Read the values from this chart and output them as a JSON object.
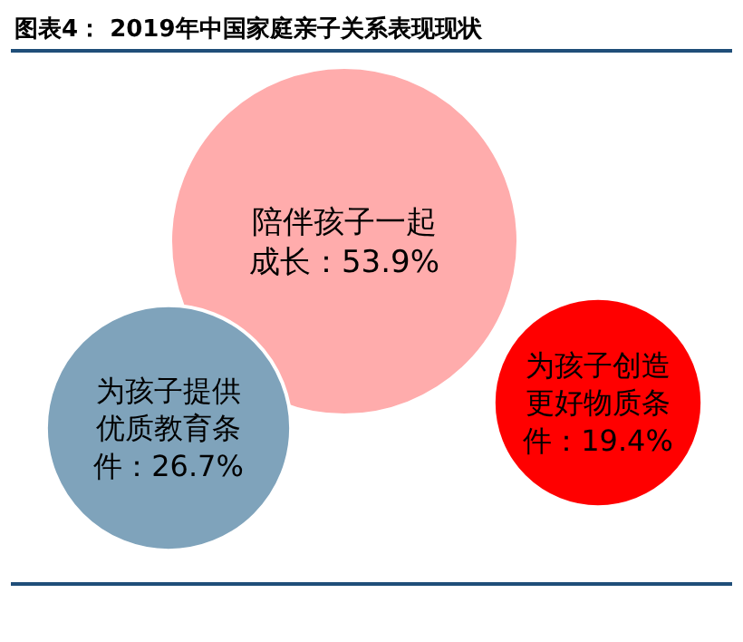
{
  "chart_data": {
    "type": "other",
    "title": "图表4： 2019年中国家庭亲子关系表现现状",
    "categories": [
      "陪伴孩子一起成长",
      "为孩子提供优质教育条件",
      "为孩子创造更好物质条件"
    ],
    "values": [
      53.9,
      26.7,
      19.4
    ],
    "value_labels": [
      "：53.9%",
      "：26.7%",
      "：19.4%"
    ],
    "colors": [
      "#ffacac",
      "#7fa3bb",
      "#ff0000"
    ]
  }
}
